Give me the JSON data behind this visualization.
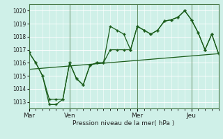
{
  "title": "",
  "xlabel": "Pression niveau de la mer( hPa )",
  "ylabel": "",
  "bg_color": "#cff0e8",
  "grid_color": "#ffffff",
  "line_color": "#1a5c1a",
  "ylim": [
    1012.5,
    1020.5
  ],
  "yticks": [
    1013,
    1014,
    1015,
    1016,
    1017,
    1018,
    1019,
    1020
  ],
  "xtick_labels": [
    "Mar",
    "Ven",
    "Mer",
    "Jeu"
  ],
  "xtick_positions": [
    0,
    36,
    96,
    144
  ],
  "xlim": [
    0,
    168
  ],
  "series1_x": [
    0,
    6,
    12,
    18,
    24,
    30,
    36,
    42,
    48,
    54,
    60,
    66,
    72,
    78,
    84,
    90,
    96,
    102,
    108,
    114,
    120,
    126,
    132,
    138,
    144,
    150,
    156,
    162,
    168
  ],
  "series1_y": [
    1016.8,
    1016.0,
    1015.0,
    1012.8,
    1012.8,
    1013.2,
    1016.0,
    1014.8,
    1014.3,
    1015.8,
    1016.0,
    1016.0,
    1018.8,
    1018.5,
    1018.2,
    1017.0,
    1018.8,
    1018.5,
    1018.2,
    1018.5,
    1019.2,
    1019.3,
    1019.5,
    1020.0,
    1019.3,
    1018.3,
    1017.0,
    1018.2,
    1016.7
  ],
  "series2_x": [
    0,
    6,
    12,
    18,
    24,
    30,
    36,
    42,
    48,
    54,
    60,
    66,
    72,
    78,
    84,
    90,
    96,
    102,
    108,
    114,
    120,
    126,
    132,
    138,
    144,
    150,
    156,
    162,
    168
  ],
  "series2_y": [
    1016.8,
    1016.0,
    1015.0,
    1013.2,
    1013.2,
    1013.2,
    1016.0,
    1014.8,
    1014.3,
    1015.8,
    1016.0,
    1016.0,
    1017.0,
    1017.0,
    1017.0,
    1017.0,
    1018.8,
    1018.5,
    1018.2,
    1018.5,
    1019.2,
    1019.3,
    1019.5,
    1020.0,
    1019.3,
    1018.3,
    1017.0,
    1018.2,
    1016.7
  ],
  "trend_x": [
    0,
    168
  ],
  "trend_y": [
    1015.5,
    1016.7
  ],
  "vline_positions": [
    36,
    96,
    144
  ]
}
